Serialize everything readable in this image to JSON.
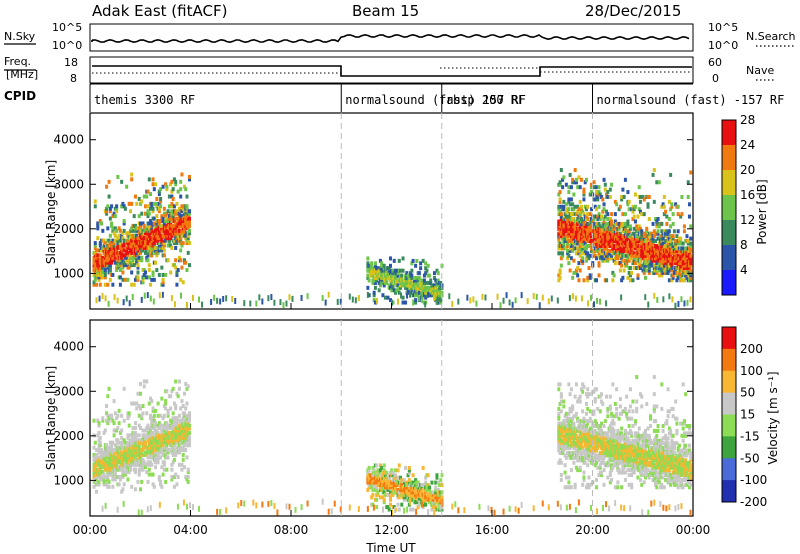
{
  "header": {
    "title": "Adak East (fitACF)",
    "beam": "Beam 15",
    "date": "28/Dec/2015"
  },
  "top_panels": {
    "nsky_label": "N.Sky",
    "nsearch_label": "N.Search",
    "nsky_ticks": [
      "10^5",
      "10^0"
    ],
    "nsearch_ticks": [
      "10^5",
      "10^0"
    ],
    "freq_label_1": "Freq.",
    "freq_label_2": "[MHz]",
    "freq_ticks": [
      "18",
      "8"
    ],
    "nave_label": "Nave",
    "nave_ticks": [
      "60",
      "0"
    ],
    "cpid_label": "CPID",
    "cpid_segments": [
      {
        "label": "themis 3300 RF",
        "start_hr": 0.0,
        "end_hr": 10.0
      },
      {
        "label": "normalsound (fast) 157 RF",
        "start_hr": 10.0,
        "end_hr": 14.0
      },
      {
        "label": "rbsp 200 RF",
        "start_hr": 14.0,
        "end_hr": 20.0
      },
      {
        "label": "normalsound (fast) -157 RF",
        "start_hr": 20.0,
        "end_hr": 24.0
      }
    ]
  },
  "chart_data": [
    {
      "type": "heatmap",
      "name": "power",
      "xlabel": "",
      "ylabel": "Slant Range [km]",
      "yticks": [
        "1000",
        "2000",
        "3000",
        "4000"
      ],
      "ylim": [
        200,
        4600
      ],
      "xlim": [
        0,
        24
      ],
      "colorbar_label": "Power [dB]",
      "colorbar_ticks": [
        "4",
        "8",
        "12",
        "16",
        "20",
        "24",
        "28"
      ],
      "colorbar_colors": [
        "#1a1aff",
        "#2b55a8",
        "#3b8a5e",
        "#6cc44a",
        "#d9c21a",
        "#f07a10",
        "#e81010"
      ],
      "regions": [
        {
          "t0": 0.1,
          "t1": 3.9,
          "r0": 700,
          "r1": 3200,
          "level": "high"
        },
        {
          "t0": 11.0,
          "t1": 14.0,
          "r0": 300,
          "r1": 1300,
          "level": "low"
        },
        {
          "t0": 18.6,
          "t1": 23.9,
          "r0": 800,
          "r1": 3300,
          "level": "high"
        }
      ]
    },
    {
      "type": "heatmap",
      "name": "velocity",
      "xlabel": "Time UT",
      "ylabel": "Slant Range [km]",
      "yticks": [
        "1000",
        "2000",
        "3000",
        "4000"
      ],
      "xticks": [
        "00:00",
        "04:00",
        "08:00",
        "12:00",
        "16:00",
        "20:00",
        "00:00"
      ],
      "ylim": [
        200,
        4600
      ],
      "xlim": [
        0,
        24
      ],
      "colorbar_label": "Velocity [m s⁻¹]",
      "colorbar_ticks": [
        "200",
        "100",
        "50",
        "15",
        "-15",
        "-50",
        "-100",
        "-200"
      ],
      "colorbar_colors": [
        "#2030b0",
        "#4a6bd8",
        "#3ea53e",
        "#8ddc55",
        "#c8c8c8",
        "#f7b733",
        "#f37a10",
        "#e81010"
      ],
      "regions": [
        {
          "t0": 0.1,
          "t1": 3.9,
          "r0": 700,
          "r1": 3200,
          "level": "ground"
        },
        {
          "t0": 11.0,
          "t1": 14.0,
          "r0": 300,
          "r1": 1300,
          "level": "mixed"
        },
        {
          "t0": 18.6,
          "t1": 23.9,
          "r0": 800,
          "r1": 3300,
          "level": "ground"
        }
      ]
    }
  ]
}
